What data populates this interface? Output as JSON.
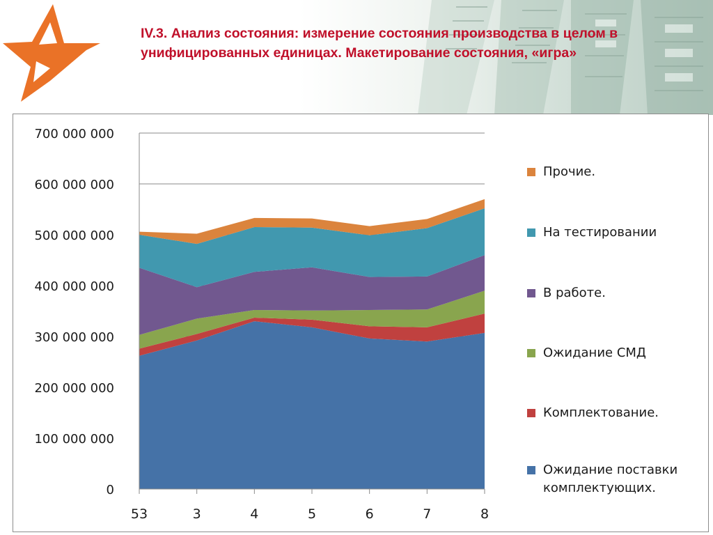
{
  "slide": {
    "title": "IV.3. Анализ состояния: измерение состояния производства в целом в унифицированных единицах. Макетирование состояния, «игра»"
  },
  "colors": {
    "title": "#c0102a",
    "logo": "#ea7227"
  },
  "chart_data": {
    "type": "area",
    "stacked": true,
    "title": "",
    "xlabel": "",
    "ylabel": "",
    "categories": [
      "53",
      "3",
      "4",
      "5",
      "6",
      "7",
      "8"
    ],
    "ylim": [
      0,
      700000000
    ],
    "yticks": [
      0,
      100000000,
      200000000,
      300000000,
      400000000,
      500000000,
      600000000,
      700000000
    ],
    "ytick_labels": [
      "0",
      "100 000 000",
      "200 000 000",
      "300 000 000",
      "400 000 000",
      "500 000 000",
      "600 000 000",
      "700 000 000"
    ],
    "grid": true,
    "legend_position": "right",
    "series": [
      {
        "name": "Ожидание поставки комплектующих.",
        "color": "#4572a7",
        "values": [
          262000000,
          292000000,
          330000000,
          318000000,
          296000000,
          290000000,
          307000000
        ]
      },
      {
        "name": "Комплектование.",
        "color": "#c0413f",
        "values": [
          14000000,
          13000000,
          7000000,
          15000000,
          24000000,
          28000000,
          38000000
        ]
      },
      {
        "name": "Ожидание СМД",
        "color": "#89a54e",
        "values": [
          27000000,
          30000000,
          15000000,
          18000000,
          32000000,
          35000000,
          45000000
        ]
      },
      {
        "name": "В работе.",
        "color": "#71588f",
        "values": [
          132000000,
          62000000,
          75000000,
          85000000,
          65000000,
          65000000,
          70000000
        ]
      },
      {
        "name": "На тестировании",
        "color": "#4198af",
        "values": [
          65000000,
          85000000,
          88000000,
          78000000,
          82000000,
          95000000,
          92000000
        ]
      },
      {
        "name": "Прочие.",
        "color": "#db843d",
        "values": [
          6000000,
          20000000,
          18000000,
          18000000,
          18000000,
          18000000,
          18000000
        ]
      }
    ]
  }
}
